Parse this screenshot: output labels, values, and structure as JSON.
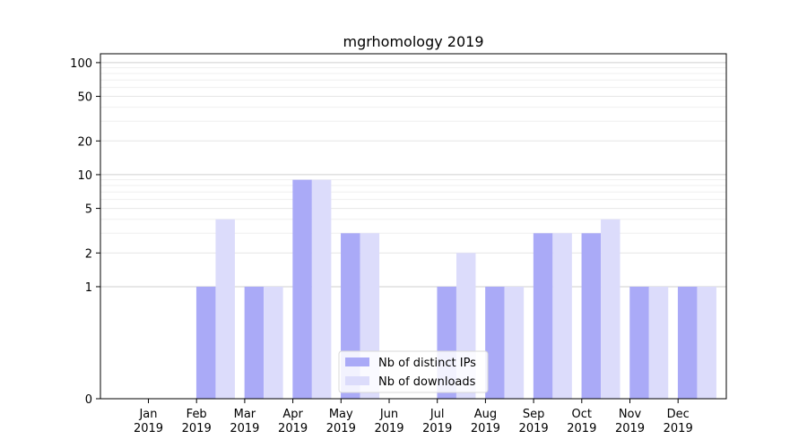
{
  "chart_data": {
    "type": "bar",
    "title": "mgrhomology 2019",
    "xlabel": "",
    "ylabel": "",
    "y_scale": "symlog",
    "ylim": [
      0,
      120
    ],
    "yticks": [
      {
        "value": 0,
        "label": "0"
      },
      {
        "value": 1,
        "label": "1"
      },
      {
        "value": 2,
        "label": "2"
      },
      {
        "value": 5,
        "label": "5"
      },
      {
        "value": 10,
        "label": "10"
      },
      {
        "value": 20,
        "label": "20"
      },
      {
        "value": 50,
        "label": "50"
      },
      {
        "value": 100,
        "label": "100"
      }
    ],
    "categories": [
      [
        "Jan",
        "2019"
      ],
      [
        "Feb",
        "2019"
      ],
      [
        "Mar",
        "2019"
      ],
      [
        "Apr",
        "2019"
      ],
      [
        "May",
        "2019"
      ],
      [
        "Jun",
        "2019"
      ],
      [
        "Jul",
        "2019"
      ],
      [
        "Aug",
        "2019"
      ],
      [
        "Sep",
        "2019"
      ],
      [
        "Oct",
        "2019"
      ],
      [
        "Nov",
        "2019"
      ],
      [
        "Dec",
        "2019"
      ]
    ],
    "series": [
      {
        "name": "Nb of distinct IPs",
        "color": "#aaaaf7",
        "values": [
          0,
          1,
          1,
          9,
          3,
          0,
          1,
          1,
          3,
          3,
          1,
          1
        ]
      },
      {
        "name": "Nb of downloads",
        "color": "#dcdcfb",
        "values": [
          0,
          4,
          1,
          9,
          3,
          0,
          2,
          1,
          3,
          4,
          1,
          1
        ]
      }
    ],
    "grid": true,
    "legend_position": "bottom-center"
  }
}
